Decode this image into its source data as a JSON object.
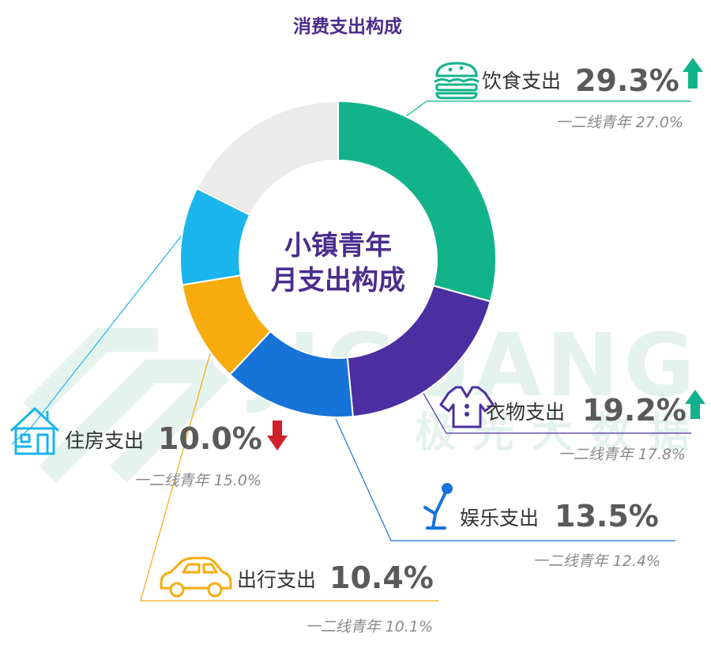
{
  "chart_data": {
    "type": "pie",
    "title": "消费支出构成",
    "center_label_lines": [
      "小镇青年",
      "月支出构成"
    ],
    "compare_label": "一二线青年",
    "slices": [
      {
        "label": "饮食支出",
        "value": 29.3,
        "value_text": "29.3%",
        "compare": 27.0,
        "compare_text": "27.0%",
        "trend": "up",
        "color": "#12b38b",
        "icon": "burger-icon"
      },
      {
        "label": "衣物支出",
        "value": 19.2,
        "value_text": "19.2%",
        "compare": 17.8,
        "compare_text": "17.8%",
        "trend": "up",
        "color": "#4b2fa0",
        "icon": "shirt-icon"
      },
      {
        "label": "娱乐支出",
        "value": 13.5,
        "value_text": "13.5%",
        "compare": 12.4,
        "compare_text": "12.4%",
        "trend": "none",
        "color": "#1673d8",
        "icon": "microphone-icon"
      },
      {
        "label": "出行支出",
        "value": 10.4,
        "value_text": "10.4%",
        "compare": 10.1,
        "compare_text": "10.1%",
        "trend": "none",
        "color": "#f7ab0d",
        "icon": "car-icon"
      },
      {
        "label": "住房支出",
        "value": 10.0,
        "value_text": "10.0%",
        "compare": 15.0,
        "compare_text": "15.0%",
        "trend": "down",
        "color": "#19b5ec",
        "icon": "house-icon"
      },
      {
        "label": "",
        "value": 17.6,
        "value_text": "",
        "compare": null,
        "compare_text": "",
        "trend": "none",
        "color": "#ebebeb",
        "icon": ""
      }
    ],
    "trend_colors": {
      "up": "#12b38b",
      "down": "#d0202a"
    }
  },
  "watermark": {
    "latin": "JIGUANG",
    "chinese": "极光大数据"
  }
}
